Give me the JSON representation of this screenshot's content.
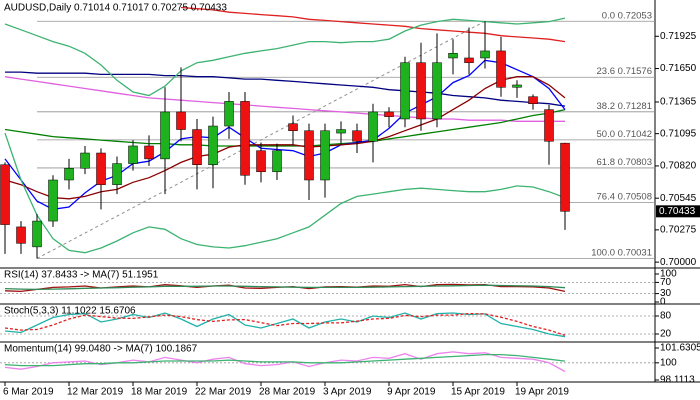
{
  "chart_data": [
    {
      "type": "candlestick",
      "title": "AUDUSD,Daily  0.71014 0.71017 0.70275 0.70433",
      "categories": [
        "6 Mar 2019",
        null,
        null,
        null,
        "12 Mar 2019",
        null,
        null,
        null,
        "18 Mar 2019",
        null,
        null,
        null,
        "22 Mar 2019",
        null,
        null,
        null,
        "28 Mar 2019",
        null,
        null,
        null,
        "3 Apr 2019",
        null,
        null,
        null,
        "9 Apr 2019",
        null,
        null,
        null,
        "15 Apr 2019",
        null,
        null,
        null,
        "19 Apr 2019",
        null,
        null,
        null
      ],
      "open": [
        0.7083,
        0.703,
        0.7013,
        0.7035,
        0.707,
        0.708,
        0.7093,
        0.7066,
        0.7084,
        0.7099,
        0.7088,
        0.7128,
        0.7113,
        0.7083,
        0.7116,
        0.7137,
        0.7095,
        0.7077,
        0.7118,
        0.7112,
        0.707,
        0.711,
        0.7112,
        0.7103,
        0.7128,
        0.7122,
        0.717,
        0.7122,
        0.7174,
        0.7174,
        0.7174,
        0.718,
        0.7149,
        0.7141,
        0.713,
        0.71014
      ],
      "high": [
        0.7085,
        0.7035,
        0.7041,
        0.7074,
        0.7088,
        0.7099,
        0.7097,
        0.709,
        0.7104,
        0.7108,
        0.7149,
        0.7166,
        0.7122,
        0.7124,
        0.7145,
        0.7145,
        0.7102,
        0.7101,
        0.7125,
        0.7118,
        0.7118,
        0.712,
        0.7118,
        0.7135,
        0.7132,
        0.7175,
        0.7187,
        0.7195,
        0.719,
        0.72,
        0.72053,
        0.7192,
        0.7155,
        0.7143,
        0.7134,
        0.71017
      ],
      "low": [
        0.7007,
        0.7007,
        0.70031,
        0.703,
        0.7062,
        0.7075,
        0.7045,
        0.7058,
        0.7078,
        0.7082,
        0.7058,
        0.7103,
        0.7062,
        0.7063,
        0.7105,
        0.7066,
        0.7068,
        0.707,
        0.71,
        0.7053,
        0.7055,
        0.71,
        0.7093,
        0.7085,
        0.7115,
        0.7115,
        0.7112,
        0.7115,
        0.716,
        0.716,
        0.7165,
        0.7141,
        0.714,
        0.713,
        0.7083,
        0.70275
      ],
      "close": [
        0.7032,
        0.7016,
        0.7035,
        0.707,
        0.708,
        0.7093,
        0.7066,
        0.7084,
        0.7099,
        0.7088,
        0.7128,
        0.7113,
        0.7083,
        0.7116,
        0.7137,
        0.7074,
        0.7077,
        0.7095,
        0.7112,
        0.707,
        0.7112,
        0.7113,
        0.7103,
        0.7128,
        0.7124,
        0.717,
        0.7122,
        0.717,
        0.7178,
        0.717,
        0.718,
        0.7149,
        0.7151,
        0.7135,
        0.7103,
        0.70433
      ],
      "up_color": "#1fb21f",
      "down_color": "#ee1111",
      "series": [
        {
          "color": "#e02020",
          "values": [
            null,
            null,
            null,
            null,
            null,
            null,
            null,
            null,
            null,
            null,
            null,
            0.7217,
            0.7216,
            0.7215,
            0.7213,
            0.7212,
            0.7211,
            0.721,
            0.7209,
            0.7207,
            0.7206,
            0.7205,
            0.7204,
            0.7203,
            0.7202,
            0.7201,
            0.7199,
            0.7198,
            0.7197,
            0.7196,
            0.7195,
            0.7193,
            0.7192,
            0.7191,
            0.719,
            0.7188
          ]
        },
        {
          "color": "#000080",
          "values": [
            0.7162,
            0.7162,
            0.7161,
            0.7161,
            0.7161,
            0.7161,
            0.716,
            0.716,
            0.716,
            0.716,
            0.7159,
            0.7159,
            0.7158,
            0.7158,
            0.7157,
            0.7156,
            0.7156,
            0.7155,
            0.7154,
            0.7153,
            0.7152,
            0.7151,
            0.715,
            0.7149,
            0.7147,
            0.7146,
            0.7145,
            0.7144,
            0.7142,
            0.7141,
            0.714,
            0.7138,
            0.7137,
            0.7136,
            0.7135,
            0.7133
          ]
        },
        {
          "color": "#e060e0",
          "values": [
            0.7158,
            0.7156,
            0.7154,
            0.7152,
            0.715,
            0.7148,
            0.7146,
            0.7144,
            0.7142,
            0.714,
            0.7139,
            0.7138,
            0.7137,
            0.7136,
            0.7135,
            0.7134,
            0.7133,
            0.7132,
            0.7131,
            0.713,
            0.7129,
            0.7128,
            0.7127,
            0.7126,
            0.7125,
            0.7124,
            0.7123,
            0.7122,
            0.7122,
            0.7121,
            0.7121,
            0.7121,
            0.712,
            0.712,
            0.712,
            0.712
          ]
        },
        {
          "color": "#008000",
          "values": [
            0.7113,
            0.7111,
            0.7109,
            0.7107,
            0.7106,
            0.7105,
            0.7104,
            0.7103,
            0.7102,
            0.7101,
            0.7101,
            0.71,
            0.71,
            0.7099,
            0.7099,
            0.7099,
            0.7099,
            0.7099,
            0.7099,
            0.7099,
            0.71,
            0.7101,
            0.7102,
            0.7103,
            0.7105,
            0.7107,
            0.7109,
            0.7111,
            0.7113,
            0.7115,
            0.7117,
            0.7119,
            0.7122,
            0.7125,
            0.7127,
            0.713
          ]
        },
        {
          "color": "#0000ff",
          "values": [
            0.7088,
            0.707,
            0.7052,
            0.7045,
            0.7047,
            0.7059,
            0.7069,
            0.7074,
            0.7084,
            0.7086,
            0.7094,
            0.7105,
            0.7107,
            0.7106,
            0.7115,
            0.7106,
            0.7097,
            0.7096,
            0.7095,
            0.709,
            0.7093,
            0.71,
            0.7102,
            0.7104,
            0.7114,
            0.7127,
            0.7134,
            0.7141,
            0.7153,
            0.7159,
            0.7172,
            0.717,
            0.7164,
            0.7158,
            0.7148,
            0.713
          ]
        },
        {
          "color": "#8b0000",
          "values": [
            0.707,
            0.7066,
            0.706,
            0.7055,
            0.7054,
            0.7056,
            0.706,
            0.7062,
            0.7068,
            0.7072,
            0.7078,
            0.7085,
            0.709,
            0.7092,
            0.7098,
            0.71,
            0.71,
            0.71,
            0.71,
            0.7098,
            0.7099,
            0.71,
            0.7101,
            0.7103,
            0.7107,
            0.7112,
            0.7117,
            0.7122,
            0.713,
            0.7138,
            0.7148,
            0.7155,
            0.7158,
            0.7158,
            0.7151,
            0.714
          ]
        },
        {
          "color": "#3cb371",
          "values": [
            0.7203,
            0.7198,
            0.7193,
            0.7188,
            0.7184,
            0.7178,
            0.7168,
            0.7155,
            0.7145,
            0.7142,
            0.715,
            0.7163,
            0.717,
            0.7172,
            0.7175,
            0.7178,
            0.718,
            0.7182,
            0.7185,
            0.7188,
            0.7188,
            0.7187,
            0.7188,
            0.7188,
            0.719,
            0.7197,
            0.7202,
            0.7205,
            0.7207,
            0.7206,
            0.7205,
            0.7204,
            0.7203,
            0.7204,
            0.7205,
            0.7208
          ]
        },
        {
          "color": "#3cb371",
          "values": [
            0.711,
            0.707,
            0.704,
            0.702,
            0.701,
            0.7008,
            0.7012,
            0.7018,
            0.7025,
            0.703,
            0.7028,
            0.702,
            0.7015,
            0.7013,
            0.7012,
            0.7014,
            0.7017,
            0.702,
            0.7025,
            0.703,
            0.704,
            0.705,
            0.7056,
            0.7058,
            0.706,
            0.7062,
            0.7063,
            0.7062,
            0.7061,
            0.706,
            0.706,
            0.7062,
            0.7065,
            0.7064,
            0.706,
            0.7055
          ]
        }
      ],
      "fibonacci": {
        "color": "#909090",
        "levels": [
          {
            "label": "0.0",
            "value": 0.72053
          },
          {
            "label": "23.6",
            "value": 0.71576
          },
          {
            "label": "38.2",
            "value": 0.71281
          },
          {
            "label": "50.0",
            "value": 0.71042
          },
          {
            "label": "61.8",
            "value": 0.70803
          },
          {
            "label": "76.4",
            "value": 0.70508
          },
          {
            "label": "100.0",
            "value": 0.70031
          }
        ]
      },
      "last_price": 0.70433,
      "ylim": [
        0.69967,
        0.72183
      ],
      "yticks": [
        {
          "value": 0.71925,
          "label": "0.71925"
        },
        {
          "value": 0.7165,
          "label": "0.71650"
        },
        {
          "value": 0.71365,
          "label": "0.71365"
        },
        {
          "value": 0.71095,
          "label": "0.71095"
        },
        {
          "value": 0.7082,
          "label": "0.70820"
        },
        {
          "value": 0.70545,
          "label": "0.70545"
        },
        {
          "value": 0.70275,
          "label": "0.70275"
        },
        {
          "value": 0.7,
          "label": "0.70000"
        }
      ]
    },
    {
      "type": "line",
      "title": "RSI(14) 37.8433 -> MA(7) 51.1951",
      "ylim": [
        0,
        100
      ],
      "yticks": [
        100,
        70,
        30,
        0
      ],
      "series": [
        {
          "color": "#a01010",
          "values": [
            40,
            38,
            45,
            52,
            54,
            57,
            50,
            54,
            57,
            54,
            62,
            58,
            52,
            57,
            60,
            50,
            49,
            52,
            55,
            48,
            54,
            55,
            53,
            57,
            56,
            62,
            55,
            62,
            63,
            61,
            62,
            55,
            55,
            54,
            50,
            37.8433
          ]
        },
        {
          "color": "#2e8b57",
          "values": [
            48,
            46,
            45,
            46,
            47,
            49,
            50,
            51,
            53,
            54,
            56,
            56,
            56,
            57,
            57,
            56,
            55,
            54,
            53,
            52,
            52,
            52,
            52,
            53,
            54,
            55,
            56,
            57,
            58,
            59,
            60,
            59,
            58,
            57,
            55,
            51.1951
          ]
        }
      ]
    },
    {
      "type": "line",
      "title": "Stoch(5,3,3) 11.1022 15.6706",
      "ylim": [
        0,
        100
      ],
      "yticks": [
        80,
        20
      ],
      "series": [
        {
          "color": "#20b2aa",
          "values": [
            30,
            25,
            50,
            75,
            85,
            88,
            60,
            70,
            85,
            75,
            90,
            70,
            45,
            70,
            85,
            50,
            40,
            55,
            70,
            40,
            60,
            70,
            60,
            80,
            75,
            90,
            70,
            88,
            90,
            85,
            87,
            55,
            45,
            35,
            20,
            11.1022
          ]
        },
        {
          "color": "#e02020",
          "dashed": true,
          "values": [
            40,
            33,
            35,
            50,
            70,
            83,
            78,
            73,
            72,
            77,
            83,
            78,
            68,
            62,
            67,
            68,
            58,
            48,
            55,
            55,
            57,
            57,
            63,
            70,
            72,
            82,
            78,
            83,
            83,
            88,
            87,
            76,
            62,
            45,
            33,
            15.6706
          ]
        }
      ]
    },
    {
      "type": "line",
      "title": "Momentum(14) 99.0480 -> MA(7) 100.1867",
      "ylim": [
        98.1113,
        101.6305
      ],
      "yticks": [
        101.6305,
        100,
        98.1113
      ],
      "series": [
        {
          "color": "#ee82ee",
          "values": [
            99.5,
            99.3,
            99.6,
            100.0,
            100.1,
            100.2,
            99.8,
            100.0,
            100.3,
            100.1,
            100.6,
            100.3,
            100.0,
            100.4,
            100.6,
            99.9,
            99.7,
            99.8,
            100.1,
            99.6,
            100.0,
            100.3,
            100.2,
            100.6,
            100.5,
            101.0,
            100.4,
            101.0,
            101.2,
            101.0,
            101.1,
            100.6,
            100.5,
            100.4,
            100.0,
            99.048
          ]
        },
        {
          "color": "#3cb371",
          "values": [
            99.8,
            99.7,
            99.7,
            99.7,
            99.8,
            99.9,
            99.9,
            100.0,
            100.0,
            100.1,
            100.2,
            100.2,
            100.2,
            100.2,
            100.3,
            100.2,
            100.1,
            100.1,
            100.1,
            100.0,
            100.0,
            100.0,
            100.1,
            100.2,
            100.3,
            100.4,
            100.5,
            100.6,
            100.7,
            100.8,
            100.9,
            100.9,
            100.8,
            100.6,
            100.4,
            100.1867
          ]
        }
      ]
    }
  ]
}
